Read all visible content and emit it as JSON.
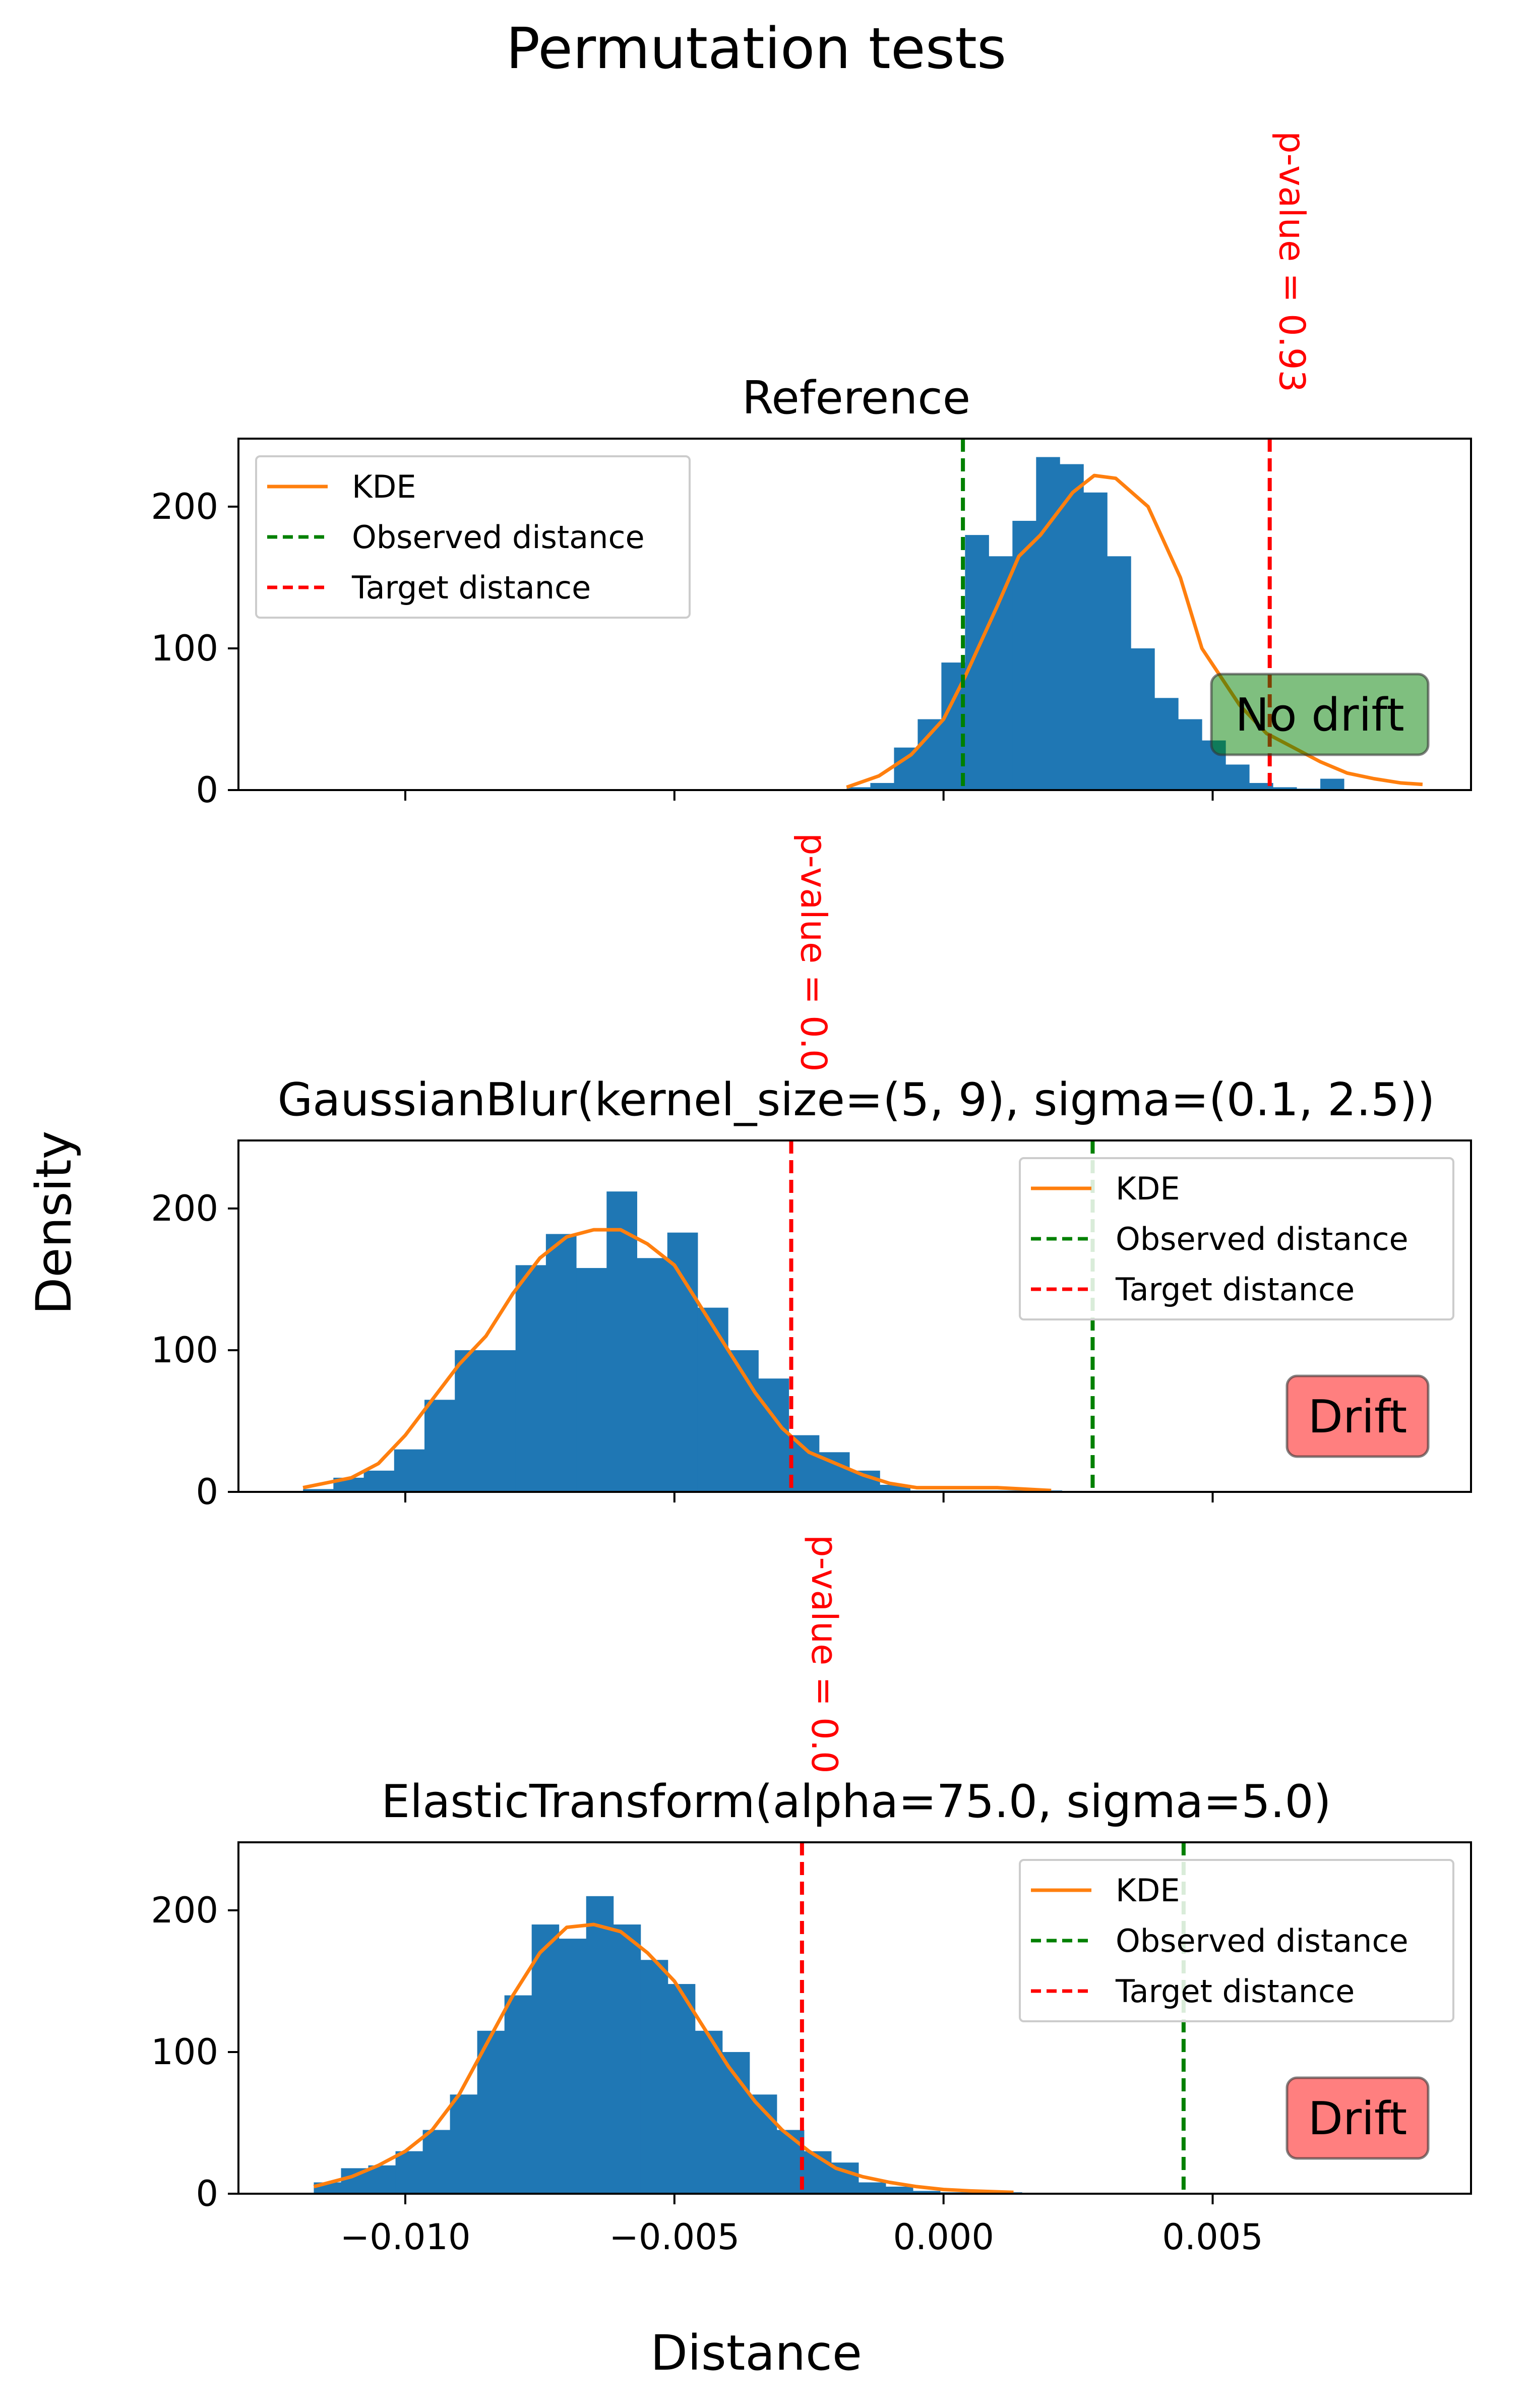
{
  "figure": {
    "suptitle": "Permutation tests",
    "xlabel": "Distance",
    "ylabel": "Density"
  },
  "colors": {
    "hist": "#1f77b4",
    "kde": "#ff7f0e",
    "observed": "#008000",
    "target": "#ff0000",
    "no_drift_box": "#008000",
    "drift_box": "#ff0000"
  },
  "chart_data": [
    {
      "type": "bar",
      "title": "Reference",
      "xlim": [
        -0.0131,
        0.0098
      ],
      "ylim": [
        0,
        248
      ],
      "xticks": [
        -0.01,
        -0.005,
        0.0,
        0.005
      ],
      "xtick_labels": [
        "",
        "",
        "",
        ""
      ],
      "yticks": [
        0,
        100,
        200
      ],
      "ytick_labels": [
        "0",
        "100",
        "200"
      ],
      "hist": {
        "bin_start": -0.0018,
        "bin_width": 0.00044,
        "counts": [
          2,
          5,
          30,
          50,
          90,
          180,
          165,
          190,
          235,
          230,
          210,
          165,
          100,
          65,
          50,
          35,
          18,
          5,
          2,
          1,
          8
        ]
      },
      "kde": {
        "x": [
          -0.0018,
          -0.0012,
          -0.0006,
          0.0,
          0.0004,
          0.001,
          0.0014,
          0.0018,
          0.0024,
          0.0028,
          0.0032,
          0.0038,
          0.0044,
          0.0048,
          0.0055,
          0.006,
          0.0065,
          0.007,
          0.0075,
          0.008,
          0.0085,
          0.0089
        ],
        "y": [
          2,
          10,
          25,
          50,
          80,
          130,
          165,
          180,
          210,
          222,
          220,
          200,
          150,
          100,
          60,
          40,
          30,
          20,
          12,
          8,
          5,
          4
        ]
      },
      "observed_distance": 0.00036,
      "target_distance": 0.00606,
      "p_value_label": "p-value = 0.93",
      "status": "No drift",
      "legend": [
        "KDE",
        "Observed distance",
        "Target distance"
      ],
      "legend_loc": "upper left"
    },
    {
      "type": "bar",
      "title": "GaussianBlur(kernel_size=(5, 9), sigma=(0.1, 2.5))",
      "xlim": [
        -0.0131,
        0.0098
      ],
      "ylim": [
        0,
        248
      ],
      "xticks": [
        -0.01,
        -0.005,
        0.0,
        0.005
      ],
      "xtick_labels": [
        "",
        "",
        "",
        ""
      ],
      "yticks": [
        0,
        100,
        200
      ],
      "ytick_labels": [
        "0",
        "100",
        "200"
      ],
      "hist": {
        "bin_start": -0.0119,
        "bin_width": 0.000564,
        "counts": [
          2,
          10,
          15,
          30,
          65,
          100,
          100,
          160,
          182,
          158,
          212,
          165,
          183,
          130,
          100,
          80,
          40,
          28,
          15,
          5,
          1,
          1,
          1,
          1,
          1
        ]
      },
      "kde": {
        "x": [
          -0.0119,
          -0.011,
          -0.0105,
          -0.01,
          -0.0095,
          -0.009,
          -0.0085,
          -0.008,
          -0.0075,
          -0.007,
          -0.0065,
          -0.006,
          -0.0055,
          -0.005,
          -0.0045,
          -0.004,
          -0.0035,
          -0.003,
          -0.0025,
          -0.002,
          -0.0015,
          -0.001,
          -0.0005,
          0.0,
          0.0005,
          0.001,
          0.0015,
          0.002
        ],
        "y": [
          3,
          10,
          20,
          40,
          65,
          90,
          110,
          140,
          165,
          180,
          185,
          185,
          175,
          160,
          130,
          100,
          70,
          45,
          28,
          20,
          12,
          6,
          3,
          3,
          3,
          3,
          2,
          1
        ]
      },
      "observed_distance": 0.00277,
      "target_distance": -0.00283,
      "p_value_label": "p-value = 0.0",
      "status": "Drift",
      "legend": [
        "KDE",
        "Observed distance",
        "Target distance"
      ],
      "legend_loc": "upper right"
    },
    {
      "type": "bar",
      "title": "ElasticTransform(alpha=75.0, sigma=5.0)",
      "xlim": [
        -0.0131,
        0.0098
      ],
      "ylim": [
        0,
        248
      ],
      "xticks": [
        -0.01,
        -0.005,
        0.0,
        0.005
      ],
      "xtick_labels": [
        "−0.010",
        "−0.005",
        "0.000",
        "0.005"
      ],
      "yticks": [
        0,
        100,
        200
      ],
      "ytick_labels": [
        "0",
        "100",
        "200"
      ],
      "hist": {
        "bin_start": -0.0117,
        "bin_width": 0.000506,
        "counts": [
          8,
          18,
          20,
          30,
          45,
          70,
          115,
          140,
          190,
          180,
          210,
          190,
          165,
          148,
          115,
          100,
          70,
          45,
          30,
          22,
          8,
          5,
          2,
          1,
          1,
          1
        ]
      },
      "kde": {
        "x": [
          -0.0117,
          -0.011,
          -0.0105,
          -0.01,
          -0.0095,
          -0.009,
          -0.0085,
          -0.008,
          -0.0075,
          -0.007,
          -0.0065,
          -0.006,
          -0.0055,
          -0.005,
          -0.0045,
          -0.004,
          -0.0035,
          -0.003,
          -0.0025,
          -0.002,
          -0.0015,
          -0.001,
          -0.0005,
          0.0,
          0.0005,
          0.0013
        ],
        "y": [
          5,
          12,
          20,
          30,
          45,
          70,
          105,
          140,
          170,
          188,
          190,
          185,
          170,
          150,
          120,
          90,
          65,
          45,
          30,
          18,
          12,
          8,
          5,
          3,
          2,
          1
        ]
      },
      "observed_distance": 0.00446,
      "target_distance": -0.00263,
      "p_value_label": "p-value = 0.0",
      "status": "Drift",
      "legend": [
        "KDE",
        "Observed distance",
        "Target distance"
      ],
      "legend_loc": "upper right"
    }
  ]
}
